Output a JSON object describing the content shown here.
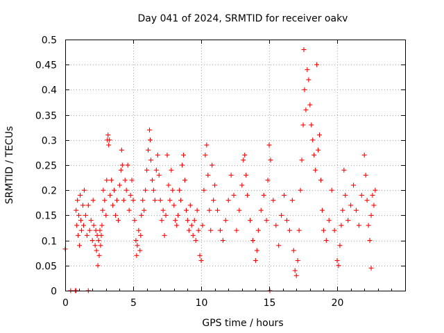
{
  "chart_data": {
    "type": "scatter",
    "title": "Day 041 of 2024, SRMTID for receiver oakv",
    "xlabel": "GPS time / hours",
    "ylabel": "SRMTID / TECUs",
    "xlim": [
      0,
      25
    ],
    "ylim": [
      0,
      0.5
    ],
    "x_ticks": [
      0,
      5,
      10,
      15,
      20
    ],
    "y_ticks": [
      0,
      0.05,
      0.1,
      0.15,
      0.2,
      0.25,
      0.3,
      0.35,
      0.4,
      0.45,
      0.5
    ],
    "x_tick_labels": [
      "0",
      "5",
      "10",
      "15",
      "20"
    ],
    "y_tick_labels": [
      "0",
      "0.05",
      "0.1",
      "0.15",
      "0.2",
      "0.25",
      "0.3",
      "0.35",
      "0.4",
      "0.45",
      "0.5"
    ],
    "grid": true,
    "marker": "+",
    "color": "#ff0000",
    "series": [
      {
        "name": "SRMTID",
        "points": [
          [
            0.0,
            0.083
          ],
          [
            0.4,
            0.0
          ],
          [
            0.75,
            0.0
          ],
          [
            0.8,
            0.0
          ],
          [
            1.7,
            0.0
          ],
          [
            0.8,
            0.16
          ],
          [
            0.85,
            0.13
          ],
          [
            0.9,
            0.18
          ],
          [
            0.95,
            0.11
          ],
          [
            1.0,
            0.15
          ],
          [
            1.05,
            0.09
          ],
          [
            1.1,
            0.19
          ],
          [
            1.15,
            0.14
          ],
          [
            1.2,
            0.12
          ],
          [
            1.3,
            0.17
          ],
          [
            1.35,
            0.13
          ],
          [
            1.4,
            0.2
          ],
          [
            1.5,
            0.15
          ],
          [
            1.6,
            0.11
          ],
          [
            1.7,
            0.17
          ],
          [
            1.8,
            0.12
          ],
          [
            1.9,
            0.14
          ],
          [
            2.0,
            0.1
          ],
          [
            2.05,
            0.18
          ],
          [
            2.1,
            0.13
          ],
          [
            2.2,
            0.09
          ],
          [
            2.25,
            0.12
          ],
          [
            2.3,
            0.08
          ],
          [
            2.35,
            0.11
          ],
          [
            2.4,
            0.05
          ],
          [
            2.45,
            0.1
          ],
          [
            2.5,
            0.07
          ],
          [
            2.55,
            0.12
          ],
          [
            2.6,
            0.09
          ],
          [
            2.65,
            0.11
          ],
          [
            2.7,
            0.13
          ],
          [
            2.75,
            0.16
          ],
          [
            2.8,
            0.2
          ],
          [
            2.9,
            0.18
          ],
          [
            3.0,
            0.15
          ],
          [
            3.05,
            0.22
          ],
          [
            3.1,
            0.3
          ],
          [
            3.15,
            0.31
          ],
          [
            3.2,
            0.29
          ],
          [
            3.25,
            0.3
          ],
          [
            3.3,
            0.19
          ],
          [
            3.4,
            0.22
          ],
          [
            3.5,
            0.17
          ],
          [
            3.6,
            0.2
          ],
          [
            3.7,
            0.15
          ],
          [
            3.8,
            0.18
          ],
          [
            3.9,
            0.14
          ],
          [
            4.0,
            0.21
          ],
          [
            4.1,
            0.24
          ],
          [
            4.15,
            0.28
          ],
          [
            4.2,
            0.25
          ],
          [
            4.3,
            0.18
          ],
          [
            4.4,
            0.22
          ],
          [
            4.5,
            0.2
          ],
          [
            4.6,
            0.25
          ],
          [
            4.7,
            0.16
          ],
          [
            4.8,
            0.19
          ],
          [
            4.9,
            0.22
          ],
          [
            5.0,
            0.18
          ],
          [
            5.1,
            0.14
          ],
          [
            5.2,
            0.1
          ],
          [
            5.25,
            0.07
          ],
          [
            5.3,
            0.09
          ],
          [
            5.4,
            0.12
          ],
          [
            5.5,
            0.08
          ],
          [
            5.55,
            0.11
          ],
          [
            5.6,
            0.15
          ],
          [
            5.7,
            0.18
          ],
          [
            5.8,
            0.16
          ],
          [
            5.9,
            0.2
          ],
          [
            6.0,
            0.24
          ],
          [
            6.1,
            0.28
          ],
          [
            6.2,
            0.32
          ],
          [
            6.25,
            0.3
          ],
          [
            6.3,
            0.26
          ],
          [
            6.4,
            0.22
          ],
          [
            6.5,
            0.2
          ],
          [
            6.6,
            0.18
          ],
          [
            6.7,
            0.24
          ],
          [
            6.8,
            0.27
          ],
          [
            6.9,
            0.23
          ],
          [
            7.0,
            0.18
          ],
          [
            7.1,
            0.14
          ],
          [
            7.2,
            0.16
          ],
          [
            7.3,
            0.11
          ],
          [
            7.4,
            0.15
          ],
          [
            7.5,
            0.27
          ],
          [
            7.6,
            0.21
          ],
          [
            7.7,
            0.18
          ],
          [
            7.8,
            0.24
          ],
          [
            7.9,
            0.2
          ],
          [
            8.0,
            0.17
          ],
          [
            8.1,
            0.14
          ],
          [
            8.2,
            0.13
          ],
          [
            8.3,
            0.15
          ],
          [
            8.4,
            0.2
          ],
          [
            8.5,
            0.18
          ],
          [
            8.6,
            0.25
          ],
          [
            8.7,
            0.27
          ],
          [
            8.8,
            0.22
          ],
          [
            8.9,
            0.16
          ],
          [
            9.0,
            0.14
          ],
          [
            9.1,
            0.12
          ],
          [
            9.2,
            0.17
          ],
          [
            9.3,
            0.13
          ],
          [
            9.4,
            0.11
          ],
          [
            9.5,
            0.14
          ],
          [
            9.6,
            0.1
          ],
          [
            9.7,
            0.16
          ],
          [
            9.8,
            0.12
          ],
          [
            9.9,
            0.07
          ],
          [
            10.0,
            0.06
          ],
          [
            10.1,
            0.13
          ],
          [
            10.2,
            0.2
          ],
          [
            10.3,
            0.27
          ],
          [
            10.4,
            0.29
          ],
          [
            10.5,
            0.23
          ],
          [
            10.6,
            0.16
          ],
          [
            10.7,
            0.12
          ],
          [
            10.8,
            0.25
          ],
          [
            10.9,
            0.18
          ],
          [
            11.0,
            0.21
          ],
          [
            11.2,
            0.16
          ],
          [
            11.4,
            0.12
          ],
          [
            11.6,
            0.1
          ],
          [
            11.8,
            0.14
          ],
          [
            12.0,
            0.18
          ],
          [
            12.2,
            0.23
          ],
          [
            12.4,
            0.19
          ],
          [
            12.6,
            0.12
          ],
          [
            12.8,
            0.16
          ],
          [
            13.0,
            0.21
          ],
          [
            13.1,
            0.26
          ],
          [
            13.2,
            0.27
          ],
          [
            13.3,
            0.23
          ],
          [
            13.4,
            0.19
          ],
          [
            13.6,
            0.14
          ],
          [
            13.8,
            0.1
          ],
          [
            14.0,
            0.06
          ],
          [
            14.1,
            0.08
          ],
          [
            14.2,
            0.12
          ],
          [
            14.4,
            0.16
          ],
          [
            14.6,
            0.19
          ],
          [
            14.8,
            0.14
          ],
          [
            14.9,
            0.22
          ],
          [
            15.0,
            0.29
          ],
          [
            15.05,
            0.0
          ],
          [
            15.1,
            0.26
          ],
          [
            15.3,
            0.18
          ],
          [
            15.5,
            0.13
          ],
          [
            15.7,
            0.09
          ],
          [
            15.9,
            0.15
          ],
          [
            16.1,
            0.19
          ],
          [
            16.3,
            0.14
          ],
          [
            16.5,
            0.12
          ],
          [
            16.7,
            0.18
          ],
          [
            16.8,
            0.08
          ],
          [
            16.9,
            0.04
          ],
          [
            17.0,
            0.03
          ],
          [
            17.1,
            0.06
          ],
          [
            17.2,
            0.12
          ],
          [
            17.3,
            0.2
          ],
          [
            17.4,
            0.26
          ],
          [
            17.5,
            0.33
          ],
          [
            17.55,
            0.48
          ],
          [
            17.6,
            0.4
          ],
          [
            17.7,
            0.36
          ],
          [
            17.8,
            0.44
          ],
          [
            17.9,
            0.42
          ],
          [
            18.0,
            0.37
          ],
          [
            18.1,
            0.33
          ],
          [
            18.2,
            0.3
          ],
          [
            18.3,
            0.27
          ],
          [
            18.4,
            0.24
          ],
          [
            18.5,
            0.45
          ],
          [
            18.6,
            0.28
          ],
          [
            18.7,
            0.31
          ],
          [
            18.8,
            0.22
          ],
          [
            18.9,
            0.16
          ],
          [
            19.0,
            0.12
          ],
          [
            19.2,
            0.1
          ],
          [
            19.4,
            0.14
          ],
          [
            19.6,
            0.2
          ],
          [
            19.8,
            0.12
          ],
          [
            20.0,
            0.06
          ],
          [
            20.1,
            0.05
          ],
          [
            20.2,
            0.09
          ],
          [
            20.3,
            0.13
          ],
          [
            20.4,
            0.16
          ],
          [
            20.5,
            0.24
          ],
          [
            20.6,
            0.19
          ],
          [
            20.8,
            0.14
          ],
          [
            21.0,
            0.17
          ],
          [
            21.2,
            0.21
          ],
          [
            21.4,
            0.16
          ],
          [
            21.6,
            0.13
          ],
          [
            21.8,
            0.19
          ],
          [
            22.0,
            0.27
          ],
          [
            22.1,
            0.23
          ],
          [
            22.2,
            0.18
          ],
          [
            22.3,
            0.13
          ],
          [
            22.4,
            0.1
          ],
          [
            22.5,
            0.15
          ],
          [
            22.6,
            0.19
          ],
          [
            22.7,
            0.17
          ],
          [
            22.8,
            0.2
          ],
          [
            22.5,
            0.045
          ]
        ]
      }
    ]
  }
}
